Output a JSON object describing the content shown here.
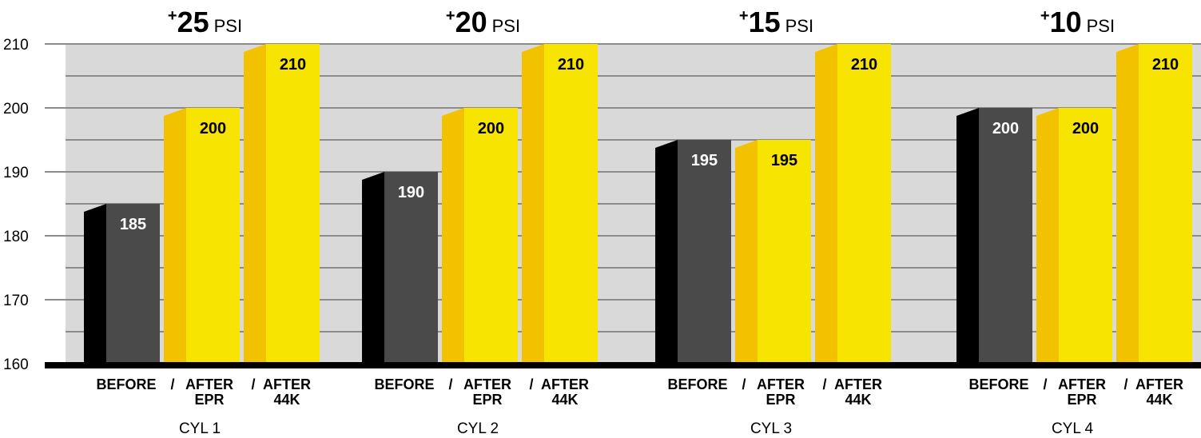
{
  "chart_data": {
    "type": "bar",
    "ylim": [
      160,
      210
    ],
    "yticks": [
      "160",
      "170",
      "180",
      "190",
      "200",
      "210"
    ],
    "grid": true,
    "categories": [
      "CYL 1",
      "CYL 2",
      "CYL 3",
      "CYL 4"
    ],
    "deltas": [
      {
        "plus": "+",
        "value": "25",
        "unit": "PSI"
      },
      {
        "plus": "+",
        "value": "20",
        "unit": "PSI"
      },
      {
        "plus": "+",
        "value": "15",
        "unit": "PSI"
      },
      {
        "plus": "+",
        "value": "10",
        "unit": "PSI"
      }
    ],
    "series_labels": [
      {
        "line1": "BEFORE",
        "line2": ""
      },
      {
        "line1": "AFTER",
        "line2": "EPR"
      },
      {
        "line1": "AFTER",
        "line2": "44K"
      }
    ],
    "separator": "/",
    "series": [
      {
        "values": [
          185,
          190,
          195,
          200
        ],
        "labels": [
          "185",
          "190",
          "195",
          "200"
        ]
      },
      {
        "values": [
          200,
          200,
          195,
          200
        ],
        "labels": [
          "200",
          "200",
          "195",
          "200"
        ]
      },
      {
        "values": [
          210,
          210,
          210,
          210
        ],
        "labels": [
          "210",
          "210",
          "210",
          "210"
        ]
      }
    ],
    "colors": {
      "plot_background": "#d9d9d9",
      "grid": "#8c8c8c",
      "before_front": "#4a4a4a",
      "before_side": "#000000",
      "after_front": "#f7e400",
      "after_side": "#f2c200",
      "before_label": "#ffffff",
      "after_label": "#000000"
    }
  }
}
